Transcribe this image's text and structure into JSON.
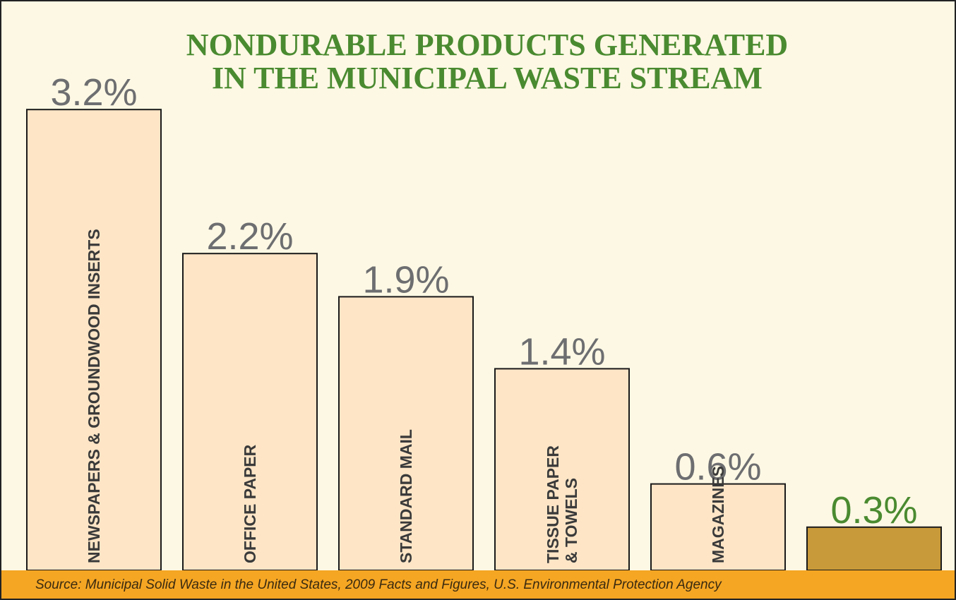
{
  "chart_data": {
    "type": "bar",
    "title": "NONDURABLE PRODUCTS GENERATED\nIN THE MUNICIPAL WASTE STREAM",
    "categories": [
      "NEWSPAPERS & GROUNDWOOD INSERTS",
      "OFFICE PAPER",
      "STANDARD MAIL",
      "TISSUE PAPER\n& TOWELS",
      "MAGAZINES",
      null
    ],
    "values": [
      3.2,
      2.2,
      1.9,
      1.4,
      0.6,
      0.3
    ],
    "value_labels": [
      "3.2%",
      "2.2%",
      "1.9%",
      "1.4%",
      "0.6%",
      "0.3%"
    ],
    "colors": [
      "#fde5c6",
      "#fde5c6",
      "#fde5c6",
      "#fde5c6",
      "#fde5c6",
      "#c99a3a"
    ],
    "label_colors": [
      "#6d6e70",
      "#6d6e70",
      "#6d6e70",
      "#6d6e70",
      "#6d6e70",
      "#4a8a30"
    ],
    "source": "Source: Municipal Solid Waste in the United States, 2009 Facts and Figures, U.S. Environmental Protection Agency"
  }
}
